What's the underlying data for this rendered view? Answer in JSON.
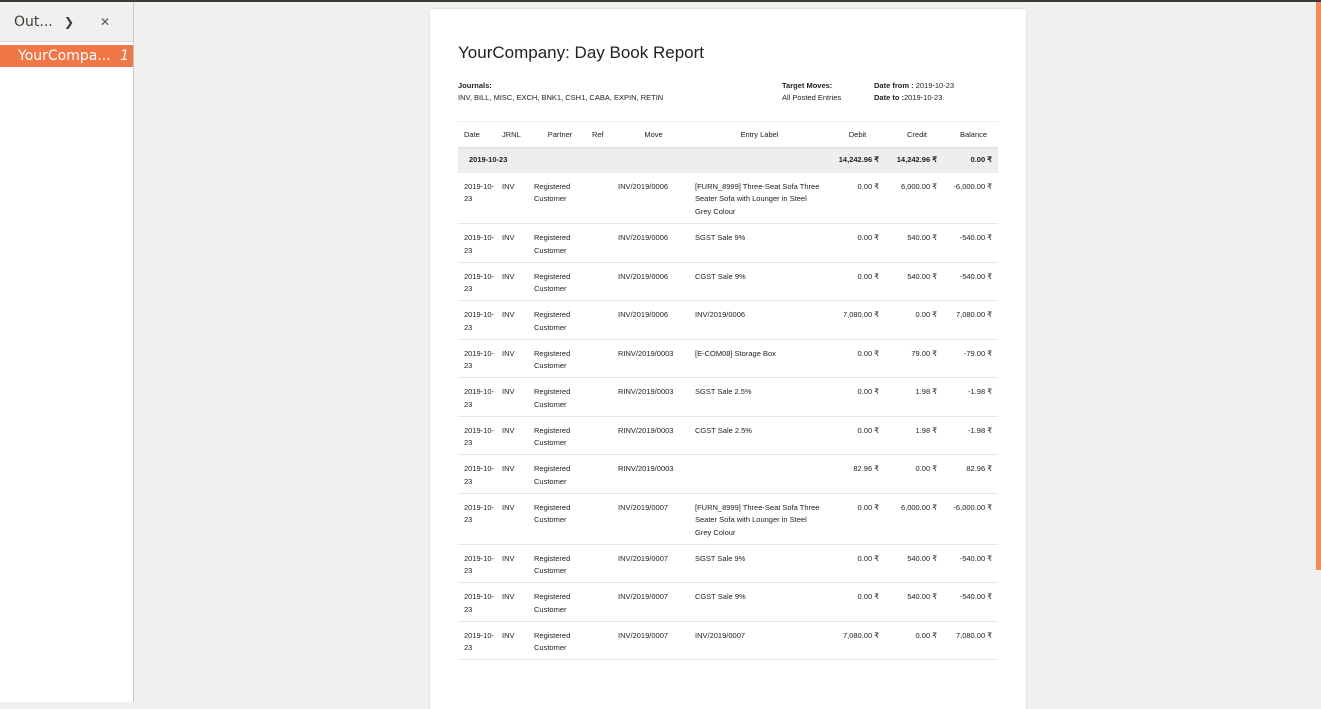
{
  "sidebar": {
    "title": "Out...",
    "item": {
      "label": "YourCompa...",
      "page": "1"
    }
  },
  "report": {
    "title": "YourCompany: Day Book Report",
    "journals_label": "Journals:",
    "journals": "INV, BILL, MISC, EXCH, BNK1, CSH1, CABA, EXPIN, RETIN",
    "target_label": "Target Moves:",
    "target": "All Posted Entries",
    "date_from_label": "Date from :",
    "date_from": "2019-10-23",
    "date_to_label": "Date to :",
    "date_to": "2019-10-23",
    "columns": [
      "Date",
      "JRNL",
      "Partner",
      "Ref",
      "Move",
      "Entry Label",
      "Debit",
      "Credit",
      "Balance"
    ],
    "group": {
      "date": "2019-10-23",
      "debit": "14,242.96 ₹",
      "credit": "14,242.96 ₹",
      "balance": "0.00 ₹"
    },
    "rows": [
      {
        "date": "2019-10-23",
        "jrnl": "INV",
        "partner": "Registered Customer",
        "ref": "",
        "move": "INV/2019/0006",
        "label": "[FURN_8999] Three-Seat Sofa Three Seater Sofa with Lounger in Steel Grey Colour",
        "debit": "0.00 ₹",
        "credit": "6,000.00 ₹",
        "balance": "-6,000.00 ₹"
      },
      {
        "date": "2019-10-23",
        "jrnl": "INV",
        "partner": "Registered Customer",
        "ref": "",
        "move": "INV/2019/0006",
        "label": "SGST Sale 9%",
        "debit": "0.00 ₹",
        "credit": "540.00 ₹",
        "balance": "-540.00 ₹"
      },
      {
        "date": "2019-10-23",
        "jrnl": "INV",
        "partner": "Registered Customer",
        "ref": "",
        "move": "INV/2019/0006",
        "label": "CGST Sale 9%",
        "debit": "0.00 ₹",
        "credit": "540.00 ₹",
        "balance": "-540.00 ₹"
      },
      {
        "date": "2019-10-23",
        "jrnl": "INV",
        "partner": "Registered Customer",
        "ref": "",
        "move": "INV/2019/0006",
        "label": "INV/2019/0006",
        "debit": "7,080.00 ₹",
        "credit": "0.00 ₹",
        "balance": "7,080.00 ₹"
      },
      {
        "date": "2019-10-23",
        "jrnl": "INV",
        "partner": "Registered Customer",
        "ref": "",
        "move": "RINV/2019/0003",
        "label": "[E-COM08] Storage Box",
        "debit": "0.00 ₹",
        "credit": "79.00 ₹",
        "balance": "-79.00 ₹"
      },
      {
        "date": "2019-10-23",
        "jrnl": "INV",
        "partner": "Registered Customer",
        "ref": "",
        "move": "RINV/2019/0003",
        "label": "SGST Sale 2.5%",
        "debit": "0.00 ₹",
        "credit": "1.98 ₹",
        "balance": "-1.98 ₹"
      },
      {
        "date": "2019-10-23",
        "jrnl": "INV",
        "partner": "Registered Customer",
        "ref": "",
        "move": "RINV/2019/0003",
        "label": "CGST Sale 2.5%",
        "debit": "0.00 ₹",
        "credit": "1.98 ₹",
        "balance": "-1.98 ₹"
      },
      {
        "date": "2019-10-23",
        "jrnl": "INV",
        "partner": "Registered Customer",
        "ref": "",
        "move": "RINV/2019/0003",
        "label": "",
        "debit": "82.96 ₹",
        "credit": "0.00 ₹",
        "balance": "82.96 ₹"
      },
      {
        "date": "2019-10-23",
        "jrnl": "INV",
        "partner": "Registered Customer",
        "ref": "",
        "move": "INV/2019/0007",
        "label": "[FURN_8999] Three-Seat Sofa Three Seater Sofa with Lounger in Steel Grey Colour",
        "debit": "0.00 ₹",
        "credit": "6,000.00 ₹",
        "balance": "-6,000.00 ₹"
      },
      {
        "date": "2019-10-23",
        "jrnl": "INV",
        "partner": "Registered Customer",
        "ref": "",
        "move": "INV/2019/0007",
        "label": "SGST Sale 9%",
        "debit": "0.00 ₹",
        "credit": "540.00 ₹",
        "balance": "-540.00 ₹"
      },
      {
        "date": "2019-10-23",
        "jrnl": "INV",
        "partner": "Registered Customer",
        "ref": "",
        "move": "INV/2019/0007",
        "label": "CGST Sale 9%",
        "debit": "0.00 ₹",
        "credit": "540.00 ₹",
        "balance": "-540.00 ₹"
      },
      {
        "date": "2019-10-23",
        "jrnl": "INV",
        "partner": "Registered Customer",
        "ref": "",
        "move": "INV/2019/0007",
        "label": "INV/2019/0007",
        "debit": "7,080.00 ₹",
        "credit": "0.00 ₹",
        "balance": "7,080.00 ₹"
      }
    ]
  }
}
